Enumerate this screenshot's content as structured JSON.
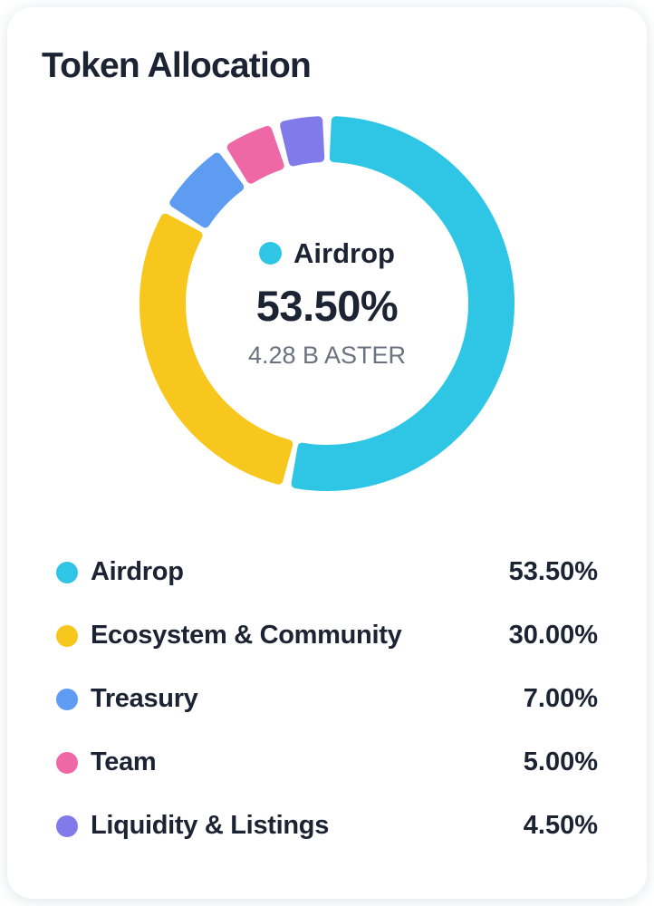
{
  "card": {
    "title": "Token Allocation"
  },
  "chart_data": {
    "type": "pie",
    "donut": true,
    "title": "Token Allocation",
    "categories": [
      "Airdrop",
      "Ecosystem & Community",
      "Treasury",
      "Team",
      "Liquidity & Listings"
    ],
    "values": [
      53.5,
      30.0,
      7.0,
      5.0,
      4.5
    ],
    "value_labels": [
      "53.50%",
      "30.00%",
      "7.00%",
      "5.00%",
      "4.50%"
    ],
    "colors": [
      "#2fc6e6",
      "#f8c71d",
      "#5e9cf1",
      "#ef68a6",
      "#807aea"
    ],
    "start_angle_deg": 0,
    "direction": "clockwise",
    "legend_position": "bottom",
    "center_text": {
      "label": "Airdrop",
      "value": "53.50%",
      "subtitle": "4.28 B ASTER"
    }
  },
  "center": {
    "dot_color": "#2fc6e6",
    "label": "Airdrop",
    "value": "53.50%",
    "subtitle": "4.28 B ASTER"
  },
  "legend": {
    "items": [
      {
        "label": "Airdrop",
        "value": "53.50%",
        "color": "#2fc6e6"
      },
      {
        "label": "Ecosystem & Community",
        "value": "30.00%",
        "color": "#f8c71d"
      },
      {
        "label": "Treasury",
        "value": "7.00%",
        "color": "#5e9cf1"
      },
      {
        "label": "Team",
        "value": "5.00%",
        "color": "#ef68a6"
      },
      {
        "label": "Liquidity & Listings",
        "value": "4.50%",
        "color": "#807aea"
      }
    ]
  },
  "colors": {
    "text_primary": "#1c2333",
    "text_muted": "#6b7280",
    "card_bg": "#ffffff"
  }
}
